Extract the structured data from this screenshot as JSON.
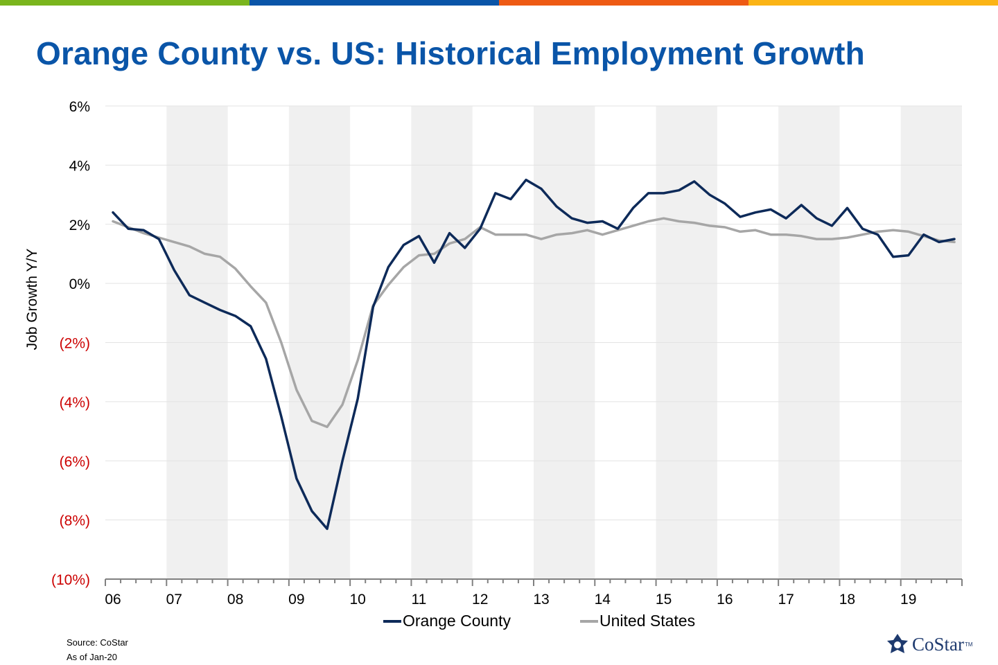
{
  "header": {
    "title": "Orange County vs. US: Historical Employment Growth",
    "brand_colors": [
      "#7ab51d",
      "#0a55a8",
      "#ee5a14",
      "#fbb416"
    ]
  },
  "footer": {
    "source": "Source: CoStar",
    "as_of": "As of Jan-20",
    "logo_text": "CoStar",
    "logo_tm": "TM"
  },
  "chart_data": {
    "type": "line",
    "title": "",
    "ylabel": "Job Growth Y/Y",
    "xlabel": "",
    "ylim": [
      -10,
      6
    ],
    "y_ticks": [
      {
        "value": 6,
        "label": "6%"
      },
      {
        "value": 4,
        "label": "4%"
      },
      {
        "value": 2,
        "label": "2%"
      },
      {
        "value": 0,
        "label": "0%"
      },
      {
        "value": -2,
        "label": "(2%)"
      },
      {
        "value": -4,
        "label": "(4%)"
      },
      {
        "value": -6,
        "label": "(6%)"
      },
      {
        "value": -8,
        "label": "(8%)"
      },
      {
        "value": -10,
        "label": "(10%)"
      }
    ],
    "negative_label_color": "#cc0000",
    "x_labels": [
      "06",
      "07",
      "08",
      "09",
      "10",
      "11",
      "12",
      "13",
      "14",
      "15",
      "16",
      "17",
      "18",
      "19"
    ],
    "shaded_years": [
      "07",
      "09",
      "11",
      "13",
      "15",
      "17",
      "19"
    ],
    "grid": true,
    "legend_position": "bottom",
    "x_unit": "quarter",
    "x_start": "2006 Q1",
    "series": [
      {
        "name": "Orange County",
        "color": "#0d2a59",
        "values": [
          2.4,
          1.85,
          1.8,
          1.5,
          0.45,
          -0.4,
          -0.65,
          -0.9,
          -1.1,
          -1.45,
          -2.55,
          -4.5,
          -6.6,
          -7.7,
          -8.3,
          -6.0,
          -3.9,
          -0.8,
          0.55,
          1.3,
          1.6,
          0.7,
          1.7,
          1.2,
          1.85,
          3.05,
          2.85,
          3.5,
          3.2,
          2.6,
          2.2,
          2.05,
          2.1,
          1.85,
          2.55,
          3.05,
          3.05,
          3.15,
          3.45,
          3.0,
          2.7,
          2.25,
          2.4,
          2.5,
          2.2,
          2.65,
          2.2,
          1.95,
          2.55,
          1.85,
          1.65,
          0.9,
          0.95,
          1.65,
          1.4,
          1.5
        ]
      },
      {
        "name": "United States",
        "color": "#a6a6a6",
        "values": [
          2.1,
          1.9,
          1.7,
          1.55,
          1.4,
          1.25,
          1.0,
          0.9,
          0.5,
          -0.1,
          -0.65,
          -2.0,
          -3.6,
          -4.65,
          -4.85,
          -4.1,
          -2.6,
          -0.75,
          -0.05,
          0.55,
          0.95,
          1.0,
          1.35,
          1.5,
          1.9,
          1.65,
          1.65,
          1.65,
          1.5,
          1.65,
          1.7,
          1.8,
          1.65,
          1.8,
          1.95,
          2.1,
          2.2,
          2.1,
          2.05,
          1.95,
          1.9,
          1.75,
          1.8,
          1.65,
          1.65,
          1.6,
          1.5,
          1.5,
          1.55,
          1.65,
          1.75,
          1.8,
          1.75,
          1.6,
          1.45,
          1.4
        ]
      }
    ]
  }
}
